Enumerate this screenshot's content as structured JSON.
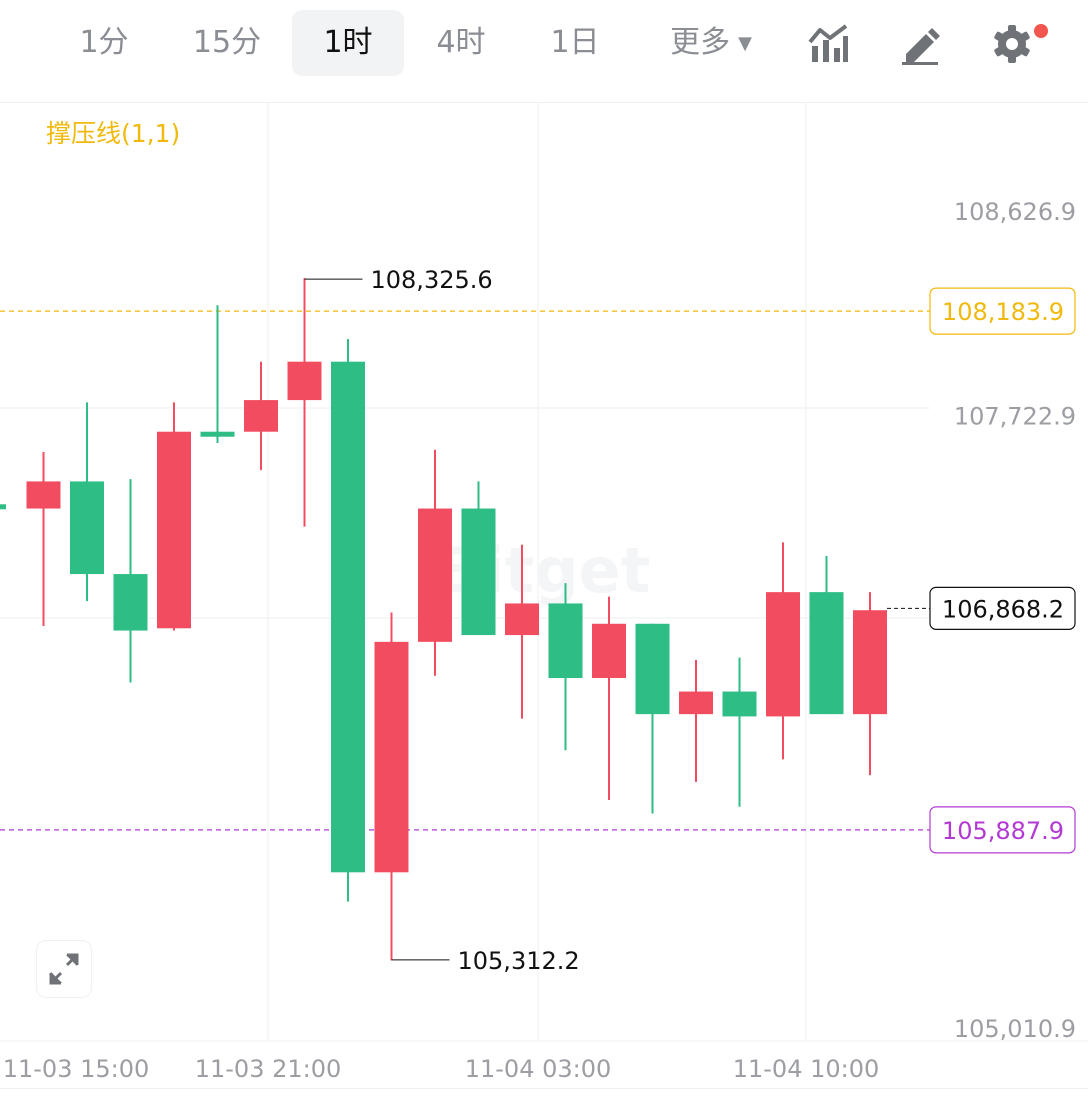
{
  "toolbar": {
    "tabs": [
      {
        "label": "1分",
        "active": false
      },
      {
        "label": "15分",
        "active": false
      },
      {
        "label": "1时",
        "active": true
      },
      {
        "label": "4时",
        "active": false
      },
      {
        "label": "1日",
        "active": false
      }
    ],
    "more_label": "更多",
    "icons": [
      "indicators-icon",
      "draw-pencil-icon",
      "settings-gear-icon"
    ],
    "has_notification": true
  },
  "indicator": {
    "label": "撑压线(1,1)"
  },
  "colors": {
    "up": "#f24c61",
    "down": "#2ebd85",
    "resistance": "#f0b90b",
    "support": "#b23ad3",
    "grid": "#eef0f2",
    "axis_text": "#9c9ea3"
  },
  "chart_data": {
    "type": "candlestick",
    "y_ticks": [
      "108,626.9",
      "107,722.9",
      "105,010.9"
    ],
    "x_ticks": [
      "11-03 15:00",
      "11-03 21:00",
      "11-04 03:00",
      "11-04 10:00"
    ],
    "resistance_line": "108,183.9",
    "support_line": "105,887.9",
    "last_price": "106,868.2",
    "high_marker": "108,325.6",
    "low_marker": "105,312.2",
    "watermark": "Bitget",
    "candles": [
      {
        "open": 107320,
        "close": 107320,
        "high": 107320,
        "low": 107320,
        "color": "down",
        "partial": true
      },
      {
        "open": 107430,
        "close": 107310,
        "high": 107560,
        "low": 106790,
        "color": "up"
      },
      {
        "open": 107430,
        "close": 107020,
        "high": 107780,
        "low": 106900,
        "color": "down"
      },
      {
        "open": 107020,
        "close": 106770,
        "high": 107440,
        "low": 106540,
        "color": "down"
      },
      {
        "open": 106780,
        "close": 107650,
        "high": 107780,
        "low": 106770,
        "color": "up"
      },
      {
        "open": 107650,
        "close": 107630,
        "high": 108210,
        "low": 107600,
        "color": "down"
      },
      {
        "open": 107650,
        "close": 107790,
        "high": 107960,
        "low": 107480,
        "color": "up"
      },
      {
        "open": 107790,
        "close": 107960,
        "high": 108330,
        "low": 107230,
        "color": "up"
      },
      {
        "open": 107960,
        "close": 105700,
        "high": 108060,
        "low": 105570,
        "color": "down"
      },
      {
        "open": 105700,
        "close": 106720,
        "high": 106850,
        "low": 105310,
        "color": "up"
      },
      {
        "open": 106720,
        "close": 107310,
        "high": 107570,
        "low": 106570,
        "color": "up"
      },
      {
        "open": 107310,
        "close": 106750,
        "high": 107430,
        "low": 106770,
        "color": "down"
      },
      {
        "open": 106750,
        "close": 106890,
        "high": 107150,
        "low": 106380,
        "color": "up"
      },
      {
        "open": 106890,
        "close": 106560,
        "high": 106980,
        "low": 106240,
        "color": "down"
      },
      {
        "open": 106560,
        "close": 106800,
        "high": 106920,
        "low": 106020,
        "color": "up"
      },
      {
        "open": 106800,
        "close": 106400,
        "high": 106800,
        "low": 105960,
        "color": "down"
      },
      {
        "open": 106400,
        "close": 106500,
        "high": 106640,
        "low": 106100,
        "color": "up"
      },
      {
        "open": 106500,
        "close": 106390,
        "high": 106650,
        "low": 105990,
        "color": "down"
      },
      {
        "open": 106390,
        "close": 106940,
        "high": 107160,
        "low": 106200,
        "color": "up"
      },
      {
        "open": 106940,
        "close": 106400,
        "high": 107100,
        "low": 106400,
        "color": "down"
      },
      {
        "open": 106400,
        "close": 106860,
        "high": 106940,
        "low": 106130,
        "color": "up"
      }
    ]
  }
}
